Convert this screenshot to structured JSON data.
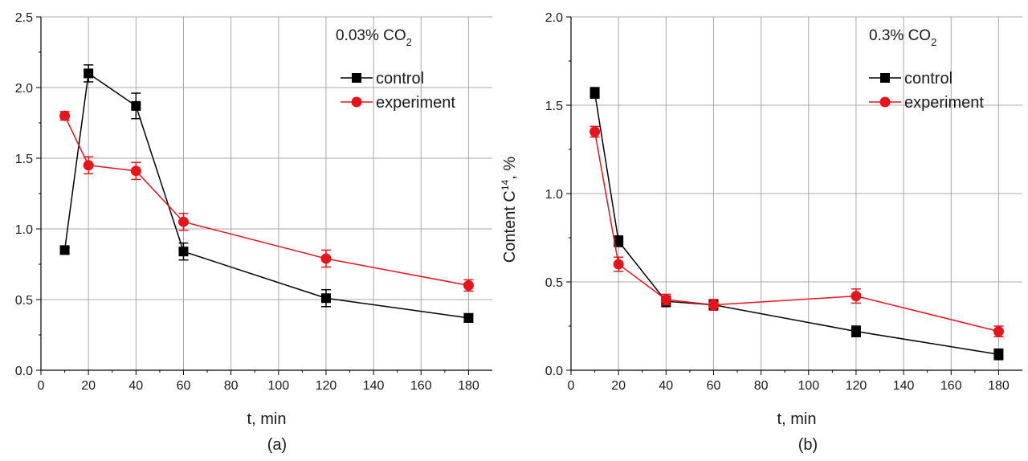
{
  "chart_data": [
    {
      "type": "line",
      "panel_label": "(a)",
      "annotation": "0.03% CO",
      "annotation_subscript": "2",
      "xlabel": "t, min",
      "ylabel": "",
      "xlim": [
        0,
        190
      ],
      "ylim": [
        0,
        2.5
      ],
      "xticks": [
        "0",
        "20",
        "40",
        "60",
        "80",
        "100",
        "120",
        "140",
        "160",
        "180"
      ],
      "yticks": [
        "0.0",
        "0.5",
        "1.0",
        "1.5",
        "2.0",
        "2.5"
      ],
      "grid": true,
      "legend_position": "top-right",
      "x": [
        10,
        20,
        40,
        60,
        120,
        180
      ],
      "series": [
        {
          "name": "control",
          "color": "#000000",
          "marker": "square",
          "values": [
            0.85,
            2.1,
            1.87,
            0.84,
            0.51,
            0.37
          ],
          "errors": [
            0.02,
            0.06,
            0.09,
            0.06,
            0.06,
            0.03
          ]
        },
        {
          "name": "experiment",
          "color": "#e8141b",
          "marker": "circle",
          "values": [
            1.8,
            1.45,
            1.41,
            1.05,
            0.79,
            0.6
          ],
          "errors": [
            0.03,
            0.06,
            0.06,
            0.06,
            0.06,
            0.04
          ]
        }
      ]
    },
    {
      "type": "line",
      "panel_label": "(b)",
      "annotation": "0.3% CO",
      "annotation_subscript": "2",
      "xlabel": "t, min",
      "ylabel": "Content C",
      "ylabel_superscript": "14",
      "ylabel_suffix": ", %",
      "xlim": [
        0,
        190
      ],
      "ylim": [
        0,
        2.0
      ],
      "xticks": [
        "0",
        "20",
        "40",
        "60",
        "80",
        "100",
        "120",
        "140",
        "160",
        "180"
      ],
      "yticks": [
        "0.0",
        "0.5",
        "1.0",
        "1.5",
        "2.0"
      ],
      "grid": true,
      "legend_position": "top-right",
      "x": [
        10,
        20,
        40,
        60,
        120,
        180
      ],
      "series": [
        {
          "name": "control",
          "color": "#000000",
          "marker": "square",
          "values": [
            1.57,
            0.73,
            0.39,
            0.37,
            0.22,
            0.09
          ],
          "errors": [
            0.03,
            0.03,
            0.03,
            0.03,
            0.03,
            0.03
          ]
        },
        {
          "name": "experiment",
          "color": "#e8141b",
          "marker": "circle",
          "values": [
            1.35,
            0.6,
            0.4,
            0.37,
            0.42,
            0.22
          ],
          "errors": [
            0.03,
            0.04,
            0.03,
            0.03,
            0.04,
            0.03
          ]
        }
      ]
    }
  ]
}
